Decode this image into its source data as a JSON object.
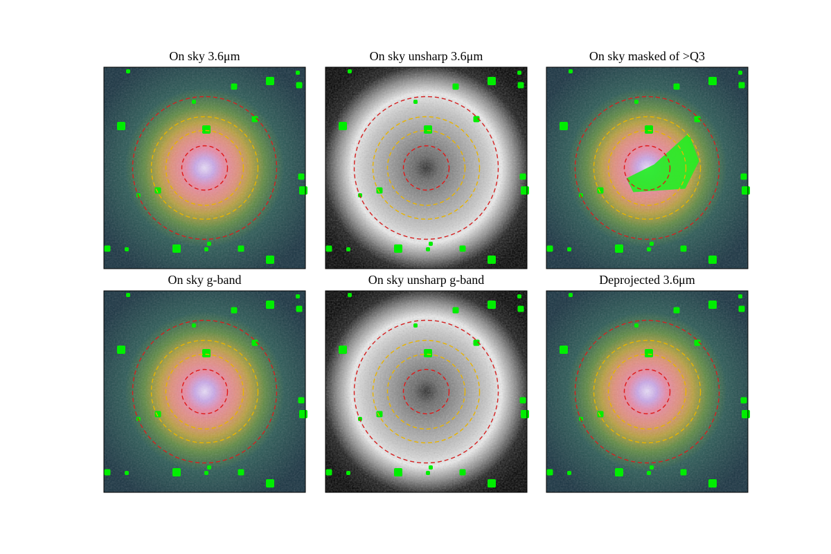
{
  "panels": [
    {
      "title": "On sky 3.6μm"
    },
    {
      "title": "On sky unsharp 3.6μm"
    },
    {
      "title": "On sky masked of >Q3"
    },
    {
      "title": "On sky g-band"
    },
    {
      "title": "On sky unsharp g-band"
    },
    {
      "title": "Deprojected 3.6μm"
    }
  ]
}
